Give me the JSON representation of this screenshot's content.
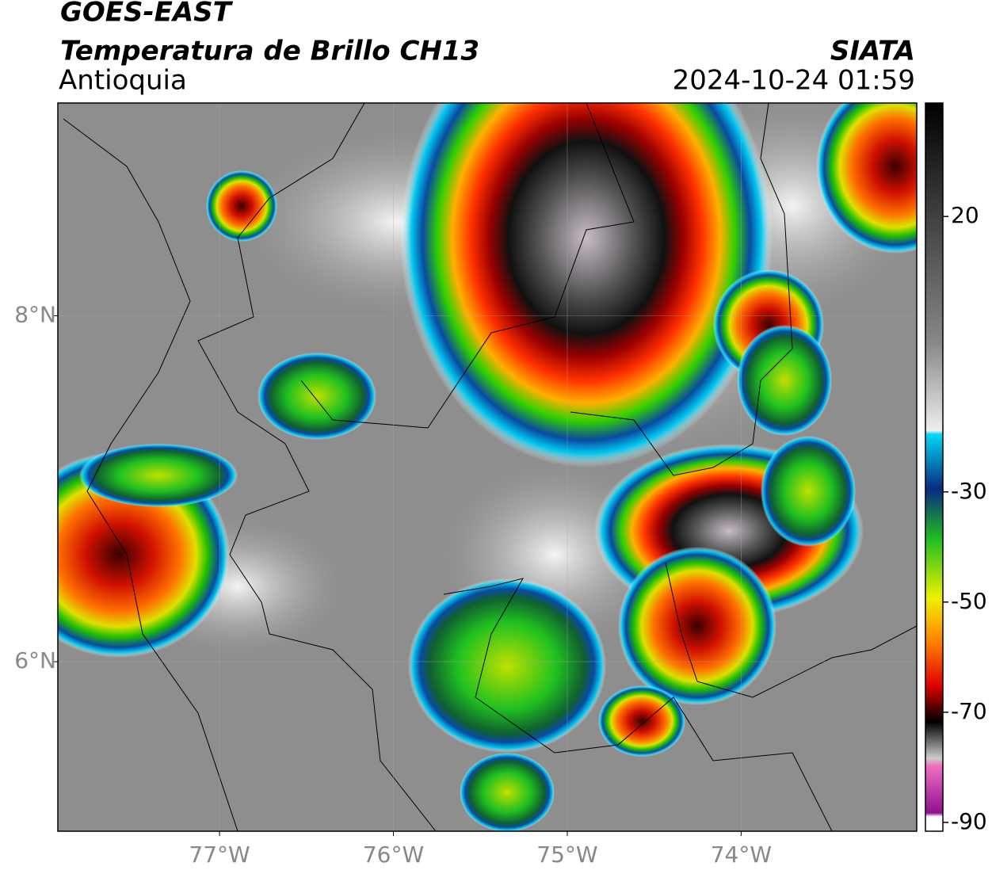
{
  "header": {
    "satellite": "GOES-EAST",
    "product": "Temperatura de Brillo CH13",
    "region": "Antioquia",
    "agency": "SIATA",
    "datetime": "2024-10-24 01:59"
  },
  "map": {
    "xlim": [
      -77.93,
      -72.99
    ],
    "ylim": [
      5.02,
      9.23
    ],
    "lat_ticks": [
      {
        "value": 8,
        "label": "8°N"
      },
      {
        "value": 6,
        "label": "6°N"
      }
    ],
    "lon_ticks": [
      {
        "value": -77,
        "label": "77°W"
      },
      {
        "value": -76,
        "label": "76°W"
      },
      {
        "value": -75,
        "label": "75°W"
      },
      {
        "value": -74,
        "label": "74°W"
      }
    ]
  },
  "colorbar": {
    "range": [
      40.6,
      -91.6
    ],
    "ticks": [
      20,
      -30,
      -50,
      -70,
      -90
    ]
  }
}
